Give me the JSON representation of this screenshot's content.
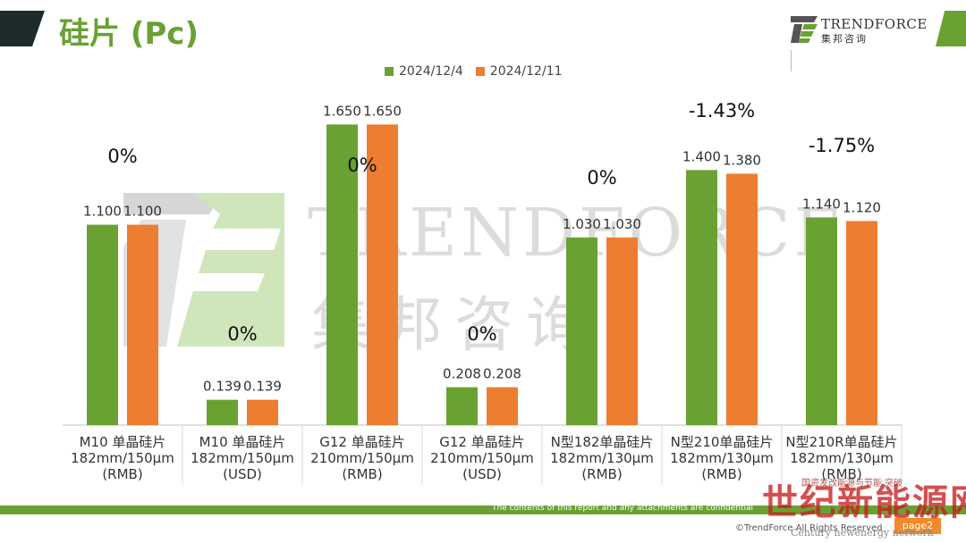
{
  "page": {
    "title": "硅片 (Pc)",
    "logo_name": "TRENDFORCE",
    "logo_sub": "集邦咨询",
    "watermark_name": "TRENDFORCE",
    "watermark_sub": "集邦咨询",
    "footer_disclaimer": "The contents of this report and any attachments are confidential",
    "copyright": "©TrendForce All Rights Reserved",
    "page_label": "page2",
    "stamp_top": "国资发改能源与节能 突破",
    "stamp_text": "世纪新能源网",
    "stamp_sub": "Century newenergy network"
  },
  "colors": {
    "green": "#6aa133",
    "orange": "#ed7d31",
    "watermark_green": "#c9e3b3",
    "watermark_gray": "#d6d6d6"
  },
  "chart_data": {
    "type": "bar",
    "legend": [
      "2024/12/4",
      "2024/12/11"
    ],
    "legend_position": "top-center",
    "grid": false,
    "categories": [
      [
        "M10 单晶硅片",
        "182mm/150μm",
        "(RMB)"
      ],
      [
        "M10 单晶硅片",
        "182mm/150μm",
        "(USD)"
      ],
      [
        "G12 单晶硅片",
        "210mm/150μm",
        "(RMB)"
      ],
      [
        "G12 单晶硅片",
        "210mm/150μm",
        "(USD)"
      ],
      [
        "N型182单晶硅片",
        "182mm/130μm",
        "(RMB)"
      ],
      [
        "N型210单晶硅片",
        "182mm/130μm",
        "(RMB)"
      ],
      [
        "N型210R单晶硅片",
        "182mm/130μm",
        "(RMB)"
      ]
    ],
    "series": [
      {
        "name": "2024/12/4",
        "values": [
          1.1,
          0.139,
          1.65,
          0.208,
          1.03,
          1.4,
          1.14
        ],
        "labels": [
          "1.100",
          "0.139",
          "1.650",
          "0.208",
          "1.030",
          "1.400",
          "1.140"
        ],
        "color": "#6aa133"
      },
      {
        "name": "2024/12/11",
        "values": [
          1.1,
          0.139,
          1.65,
          0.208,
          1.03,
          1.38,
          1.12
        ],
        "labels": [
          "1.100",
          "0.139",
          "1.650",
          "0.208",
          "1.030",
          "1.380",
          "1.120"
        ],
        "color": "#ed7d31"
      }
    ],
    "changes": [
      "0%",
      "0%",
      "0%",
      "0%",
      "0%",
      "-1.43%",
      "-1.75%"
    ],
    "xlabel": "",
    "ylabel": ""
  }
}
